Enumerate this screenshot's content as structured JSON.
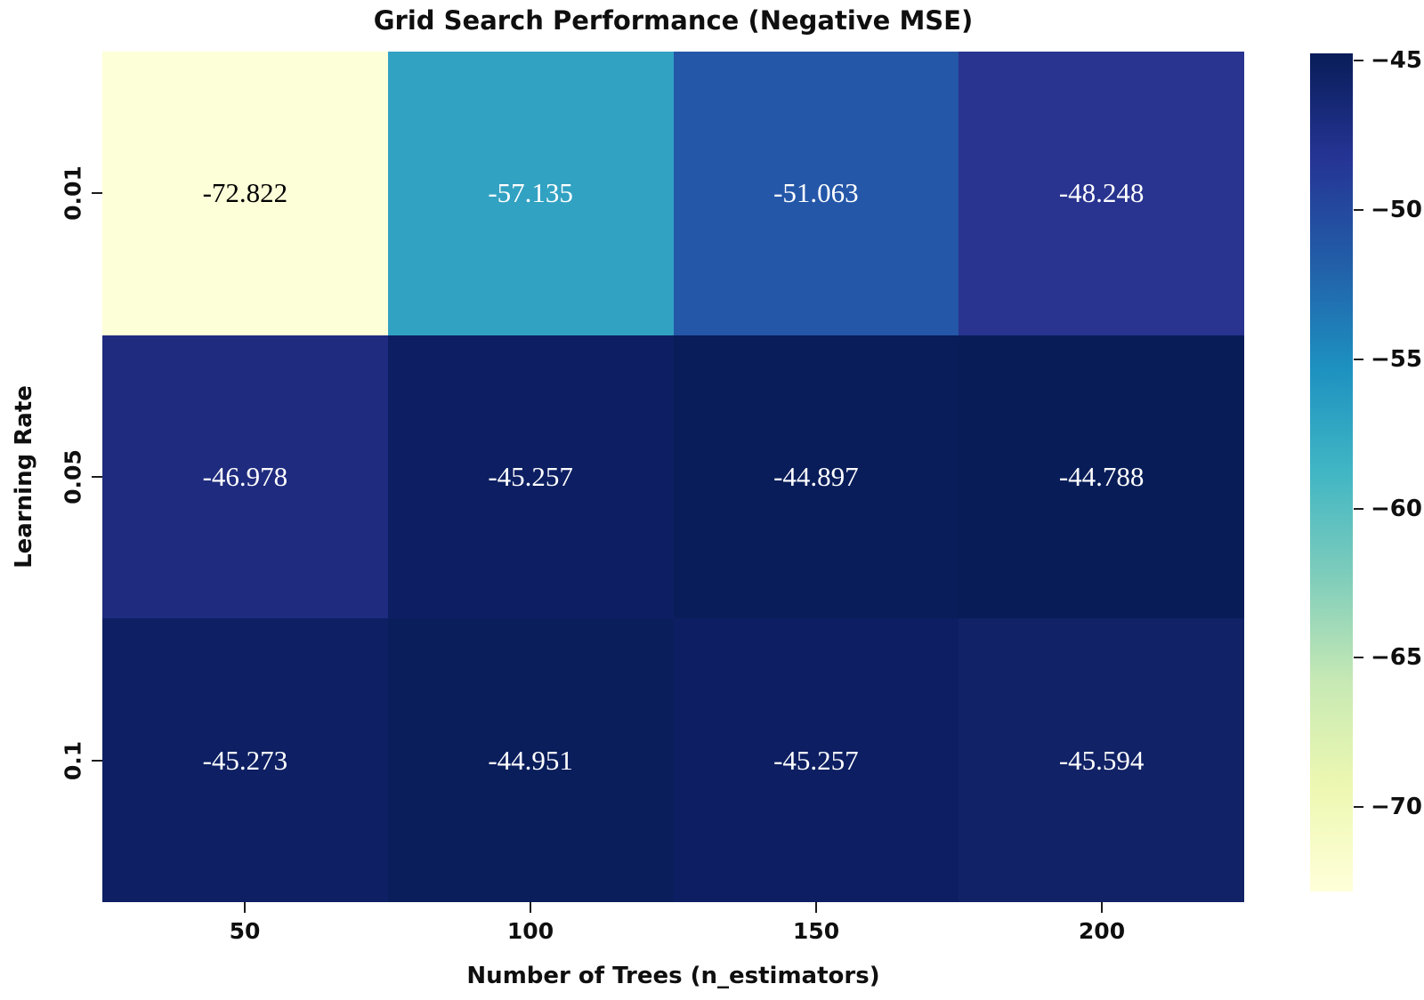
{
  "chart_data": {
    "type": "heatmap",
    "title": "Grid Search Performance (Negative MSE)",
    "xlabel": "Number of Trees (n_estimators)",
    "ylabel": "Learning Rate",
    "x_categories": [
      "50",
      "100",
      "150",
      "200"
    ],
    "y_categories": [
      "0.01",
      "0.05",
      "0.1"
    ],
    "values": [
      [
        -72.822,
        -57.135,
        -51.063,
        -48.248
      ],
      [
        -46.978,
        -45.257,
        -44.897,
        -44.788
      ],
      [
        -45.273,
        -44.951,
        -45.257,
        -45.594
      ]
    ],
    "cells": [
      [
        {
          "label": "-72.822",
          "bg": "#fdffd8",
          "fg": "#000000"
        },
        {
          "label": "-57.135",
          "bg": "#32a2c3",
          "fg": "#ffffff"
        },
        {
          "label": "-51.063",
          "bg": "#2457a8",
          "fg": "#ffffff"
        },
        {
          "label": "-48.248",
          "bg": "#28348f",
          "fg": "#ffffff"
        }
      ],
      [
        {
          "label": "-46.978",
          "bg": "#1f2b7e",
          "fg": "#ffffff"
        },
        {
          "label": "-45.257",
          "bg": "#0d1f62",
          "fg": "#ffffff"
        },
        {
          "label": "-44.897",
          "bg": "#091d5a",
          "fg": "#ffffff"
        },
        {
          "label": "-44.788",
          "bg": "#081d58",
          "fg": "#ffffff"
        }
      ],
      [
        {
          "label": "-45.273",
          "bg": "#0e2063",
          "fg": "#ffffff"
        },
        {
          "label": "-44.951",
          "bg": "#0a1e5c",
          "fg": "#ffffff"
        },
        {
          "label": "-45.257",
          "bg": "#0d1f62",
          "fg": "#ffffff"
        },
        {
          "label": "-45.594",
          "bg": "#112266",
          "fg": "#ffffff"
        }
      ]
    ],
    "colorbar": {
      "ticks": [
        "−45",
        "−50",
        "−55",
        "−60",
        "−65",
        "−70"
      ],
      "vmin": -72.822,
      "vmax": -44.788,
      "colormap": "YlGnBu",
      "gradient_stops_top_to_bottom": [
        "#081d58",
        "#253494",
        "#225ea8",
        "#1d91c0",
        "#41b6c4",
        "#7fcdbb",
        "#c7e9b4",
        "#edf8b1",
        "#ffffd9"
      ]
    },
    "grid": false,
    "legend": "colorbar-right"
  }
}
